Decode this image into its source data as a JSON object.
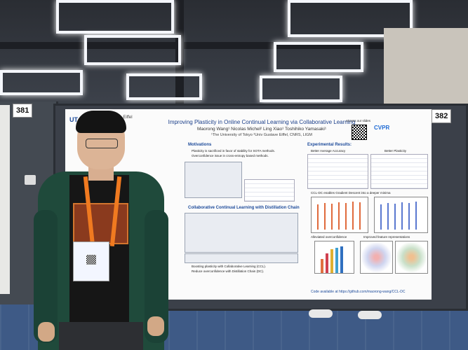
{
  "booth_numbers": {
    "left": "381",
    "right": "382"
  },
  "poster": {
    "title": "Improving Plasticity in Online Continual Learning via Collaborative Learning",
    "authors": "Maorong Wang¹   Nicolas Michel²   Ling Xiao¹   Toshihiko Yamasaki¹",
    "affiliations": "¹The University of Tokyo   ²Univ Gustave Eiffel, CNRS, LIGM",
    "logo_left": "UT",
    "logo_partner": "Université Gustave Eiffel",
    "conference_logo": "CVPR",
    "access_label": "Access our slides",
    "sections": {
      "motivations": "Motivations",
      "ccl": "Collaborative Continual Learning with Distillation Chain",
      "experimental": "Experimental Results:",
      "accuracy": "Better Average Accuracy",
      "plasticity": "Better Plasticity",
      "ccl_dc": "CCL-DC enables Gradient Descent into a deeper minima",
      "overconfidence": "Alleviated overconfidence",
      "representations": "Improved feature representations"
    },
    "bullets": [
      "Plasticity is sacrificed in favor of stability for SOTA methods.",
      "Overconfidence issue in cross-entropy based methods.",
      "Boosting plasticity with Collaborative Learning (CCL).",
      "Reduce overconfidence with Distillation Chain (DC)."
    ],
    "code_link": "Code available at https://github.com/maorong-wang/CCL-DC"
  },
  "colors": {
    "poster_title": "#1b3f8a",
    "lanyard": "#f07a20",
    "jacket": "#1f4a3b",
    "floor": "#3e5a86"
  }
}
